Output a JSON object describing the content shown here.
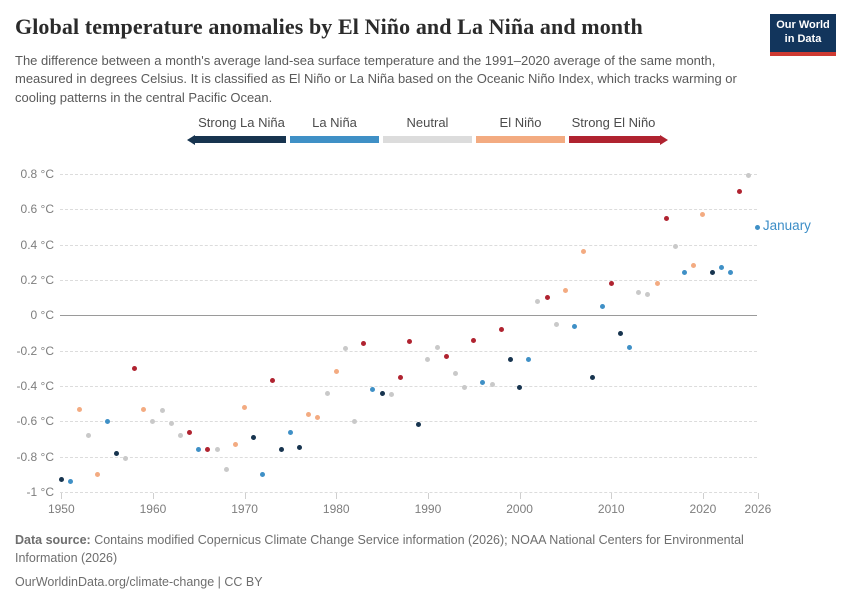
{
  "header": {
    "title": "Global temperature anomalies by El Niño and La Niña and month",
    "subtitle": "The difference between a month's average land-sea surface temperature and the 1991–2020 average of the same month, measured in degrees Celsius. It is classified as El Niño or La Niña based on the Oceanic Niño Index, which tracks warming or cooling patterns in the central Pacific Ocean.",
    "logo": {
      "line1": "Our World",
      "line2": "in Data",
      "bg_color": "#12355c",
      "bar_color": "#cf3a32"
    }
  },
  "legend": {
    "order": [
      "strong-la-nina",
      "la-nina",
      "neutral",
      "el-nino",
      "strong-el-nino"
    ]
  },
  "chart_data": {
    "type": "scatter",
    "title": "Global temperature anomalies by El Niño and La Niña and month",
    "series_label": "January",
    "series_label_color": "#3d8ec7",
    "grid": true,
    "legend_position": "top",
    "x_range": [
      1950,
      2026
    ],
    "y_range": [
      -1.05,
      0.9
    ],
    "x_ticks": [
      1950,
      1960,
      1970,
      1980,
      1990,
      2000,
      2010,
      2020,
      2026
    ],
    "y_ticks": [
      {
        "label": "0.8 °C",
        "value": 0.8
      },
      {
        "label": "0.6 °C",
        "value": 0.6
      },
      {
        "label": "0.4 °C",
        "value": 0.4
      },
      {
        "label": "0.2 °C",
        "value": 0.2
      },
      {
        "label": "0 °C",
        "value": 0
      },
      {
        "label": "-0.2 °C",
        "value": -0.2
      },
      {
        "label": "-0.4 °C",
        "value": -0.4
      },
      {
        "label": "-0.6 °C",
        "value": -0.6
      },
      {
        "label": "-0.8 °C",
        "value": -0.8
      },
      {
        "label": "-1 °C",
        "value": -1
      }
    ],
    "phases": {
      "strong-la-nina": {
        "label": "Strong La Niña",
        "color": "#17344f"
      },
      "la-nina": {
        "label": "La Niña",
        "color": "#3f90c6"
      },
      "neutral": {
        "label": "Neutral",
        "color": "#c9c9c9",
        "bar_color": "#dcdcdc"
      },
      "el-nino": {
        "label": "El Niño",
        "color": "#f3ab81"
      },
      "strong-el-nino": {
        "label": "Strong El Niño",
        "color": "#b02330"
      }
    },
    "points_format": [
      "year",
      "anomaly_c",
      "phase"
    ],
    "points": [
      [
        1950,
        -0.93,
        "strong-la-nina"
      ],
      [
        1951,
        -0.94,
        "la-nina"
      ],
      [
        1952,
        -0.53,
        "el-nino"
      ],
      [
        1953,
        -0.68,
        "neutral"
      ],
      [
        1954,
        -0.9,
        "el-nino"
      ],
      [
        1955,
        -0.6,
        "la-nina"
      ],
      [
        1956,
        -0.78,
        "strong-la-nina"
      ],
      [
        1957,
        -0.81,
        "neutral"
      ],
      [
        1958,
        -0.3,
        "strong-el-nino"
      ],
      [
        1959,
        -0.53,
        "el-nino"
      ],
      [
        1960,
        -0.6,
        "neutral"
      ],
      [
        1961,
        -0.54,
        "neutral"
      ],
      [
        1962,
        -0.61,
        "neutral"
      ],
      [
        1963,
        -0.68,
        "neutral"
      ],
      [
        1964,
        -0.66,
        "strong-el-nino"
      ],
      [
        1965,
        -0.76,
        "la-nina"
      ],
      [
        1966,
        -0.76,
        "strong-el-nino"
      ],
      [
        1967,
        -0.76,
        "neutral"
      ],
      [
        1968,
        -0.87,
        "neutral"
      ],
      [
        1969,
        -0.73,
        "el-nino"
      ],
      [
        1970,
        -0.52,
        "el-nino"
      ],
      [
        1971,
        -0.69,
        "strong-la-nina"
      ],
      [
        1972,
        -0.9,
        "la-nina"
      ],
      [
        1973,
        -0.37,
        "strong-el-nino"
      ],
      [
        1974,
        -0.76,
        "strong-la-nina"
      ],
      [
        1975,
        -0.66,
        "la-nina"
      ],
      [
        1976,
        -0.75,
        "strong-la-nina"
      ],
      [
        1977,
        -0.56,
        "el-nino"
      ],
      [
        1978,
        -0.58,
        "el-nino"
      ],
      [
        1979,
        -0.44,
        "neutral"
      ],
      [
        1980,
        -0.32,
        "el-nino"
      ],
      [
        1981,
        -0.19,
        "neutral"
      ],
      [
        1982,
        -0.6,
        "neutral"
      ],
      [
        1983,
        -0.16,
        "strong-el-nino"
      ],
      [
        1984,
        -0.42,
        "la-nina"
      ],
      [
        1985,
        -0.44,
        "strong-la-nina"
      ],
      [
        1986,
        -0.45,
        "neutral"
      ],
      [
        1987,
        -0.35,
        "strong-el-nino"
      ],
      [
        1988,
        -0.15,
        "strong-el-nino"
      ],
      [
        1989,
        -0.62,
        "strong-la-nina"
      ],
      [
        1990,
        -0.25,
        "neutral"
      ],
      [
        1991,
        -0.18,
        "neutral"
      ],
      [
        1992,
        -0.23,
        "strong-el-nino"
      ],
      [
        1993,
        -0.33,
        "neutral"
      ],
      [
        1994,
        -0.41,
        "neutral"
      ],
      [
        1995,
        -0.14,
        "strong-el-nino"
      ],
      [
        1996,
        -0.38,
        "la-nina"
      ],
      [
        1997,
        -0.39,
        "neutral"
      ],
      [
        1998,
        -0.08,
        "strong-el-nino"
      ],
      [
        1999,
        -0.25,
        "strong-la-nina"
      ],
      [
        2000,
        -0.41,
        "strong-la-nina"
      ],
      [
        2001,
        -0.25,
        "la-nina"
      ],
      [
        2002,
        0.08,
        "neutral"
      ],
      [
        2003,
        0.1,
        "strong-el-nino"
      ],
      [
        2004,
        -0.05,
        "neutral"
      ],
      [
        2005,
        0.14,
        "el-nino"
      ],
      [
        2006,
        -0.06,
        "la-nina"
      ],
      [
        2007,
        0.36,
        "el-nino"
      ],
      [
        2008,
        -0.35,
        "strong-la-nina"
      ],
      [
        2009,
        0.05,
        "la-nina"
      ],
      [
        2010,
        0.18,
        "strong-el-nino"
      ],
      [
        2011,
        -0.1,
        "strong-la-nina"
      ],
      [
        2012,
        -0.18,
        "la-nina"
      ],
      [
        2013,
        0.13,
        "neutral"
      ],
      [
        2014,
        0.12,
        "neutral"
      ],
      [
        2015,
        0.18,
        "el-nino"
      ],
      [
        2016,
        0.55,
        "strong-el-nino"
      ],
      [
        2017,
        0.39,
        "neutral"
      ],
      [
        2018,
        0.24,
        "la-nina"
      ],
      [
        2019,
        0.28,
        "el-nino"
      ],
      [
        2020,
        0.57,
        "el-nino"
      ],
      [
        2021,
        0.24,
        "strong-la-nina"
      ],
      [
        2022,
        0.27,
        "la-nina"
      ],
      [
        2023,
        0.24,
        "la-nina"
      ],
      [
        2024,
        0.7,
        "strong-el-nino"
      ],
      [
        2025,
        0.79,
        "neutral"
      ],
      [
        2026,
        0.5,
        "la-nina"
      ]
    ]
  },
  "footer": {
    "datasource_label": "Data source:",
    "datasource_text": " Contains modified Copernicus Climate Change Service information (2026); NOAA National Centers for Environmental Information (2026)",
    "link_line": "OurWorldinData.org/climate-change | CC BY"
  }
}
